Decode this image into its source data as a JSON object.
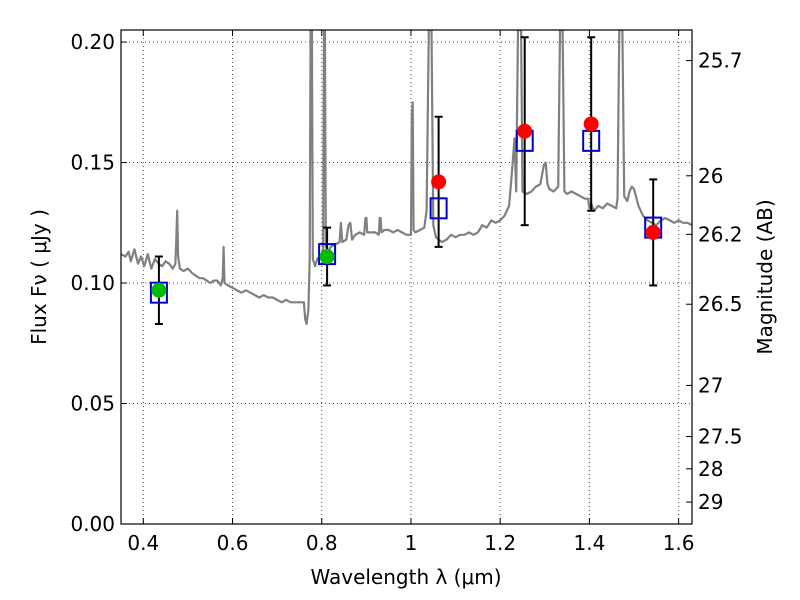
{
  "chart_data": {
    "type": "scatter",
    "xlabel": "Wavelength  λ (μm)",
    "ylabel": "Flux  Fν  ( μJy )",
    "y2label": "Magnitude (AB)",
    "xlim": [
      0.35,
      1.63
    ],
    "ylim": [
      0.0,
      0.205
    ],
    "grid": true,
    "x_ticks": [
      0.4,
      0.6,
      0.8,
      1.0,
      1.2,
      1.4,
      1.6
    ],
    "x_tick_labels": [
      "0.4",
      "0.6",
      "0.8",
      "1",
      "1.2",
      "1.4",
      "1.6"
    ],
    "y_ticks": [
      0.0,
      0.05,
      0.1,
      0.15,
      0.2
    ],
    "y_tick_labels": [
      "0.00",
      "0.05",
      "0.10",
      "0.15",
      "0.20"
    ],
    "y2_ticks": [
      {
        "label": "25.7",
        "flux": 0.1923
      },
      {
        "label": "26",
        "flux": 0.1445
      },
      {
        "label": "26.2",
        "flux": 0.1202
      },
      {
        "label": "26.5",
        "flux": 0.0912
      },
      {
        "label": "27",
        "flux": 0.0575
      },
      {
        "label": "27.5",
        "flux": 0.0363
      },
      {
        "label": "28",
        "flux": 0.0229
      },
      {
        "label": "29",
        "flux": 0.0091
      }
    ],
    "colors": {
      "spectrum": "#808080",
      "model_box": "#0000cc",
      "observed_red": "#ff0000",
      "observed_green": "#00bb00",
      "errorbar": "#000000"
    },
    "spectrum": [
      [
        0.35,
        0.112
      ],
      [
        0.36,
        0.111
      ],
      [
        0.367,
        0.113
      ],
      [
        0.372,
        0.109
      ],
      [
        0.38,
        0.114
      ],
      [
        0.388,
        0.108
      ],
      [
        0.395,
        0.111
      ],
      [
        0.402,
        0.107
      ],
      [
        0.41,
        0.112
      ],
      [
        0.418,
        0.106
      ],
      [
        0.426,
        0.11
      ],
      [
        0.434,
        0.108
      ],
      [
        0.442,
        0.107
      ],
      [
        0.45,
        0.109
      ],
      [
        0.458,
        0.108
      ],
      [
        0.466,
        0.106
      ],
      [
        0.472,
        0.108
      ],
      [
        0.474,
        0.118
      ],
      [
        0.476,
        0.13
      ],
      [
        0.478,
        0.111
      ],
      [
        0.482,
        0.106
      ],
      [
        0.49,
        0.105
      ],
      [
        0.5,
        0.106
      ],
      [
        0.51,
        0.104
      ],
      [
        0.518,
        0.103
      ],
      [
        0.526,
        0.102
      ],
      [
        0.534,
        0.102
      ],
      [
        0.542,
        0.101
      ],
      [
        0.55,
        0.1
      ],
      [
        0.558,
        0.101
      ],
      [
        0.566,
        0.101
      ],
      [
        0.574,
        0.099
      ],
      [
        0.578,
        0.102
      ],
      [
        0.58,
        0.115
      ],
      [
        0.582,
        0.1
      ],
      [
        0.59,
        0.099
      ],
      [
        0.6,
        0.098
      ],
      [
        0.61,
        0.097
      ],
      [
        0.62,
        0.096
      ],
      [
        0.63,
        0.097
      ],
      [
        0.64,
        0.096
      ],
      [
        0.65,
        0.095
      ],
      [
        0.66,
        0.094
      ],
      [
        0.67,
        0.095
      ],
      [
        0.68,
        0.094
      ],
      [
        0.69,
        0.094
      ],
      [
        0.7,
        0.093
      ],
      [
        0.71,
        0.092
      ],
      [
        0.72,
        0.093
      ],
      [
        0.73,
        0.092
      ],
      [
        0.74,
        0.092
      ],
      [
        0.75,
        0.092
      ],
      [
        0.76,
        0.092
      ],
      [
        0.763,
        0.085
      ],
      [
        0.766,
        0.083
      ],
      [
        0.77,
        0.089
      ],
      [
        0.773,
        0.11
      ],
      [
        0.775,
        0.205
      ],
      [
        0.778,
        0.205
      ],
      [
        0.78,
        0.11
      ],
      [
        0.785,
        0.107
      ],
      [
        0.79,
        0.11
      ],
      [
        0.795,
        0.111
      ],
      [
        0.8,
        0.112
      ],
      [
        0.803,
        0.114
      ],
      [
        0.805,
        0.205
      ],
      [
        0.807,
        0.205
      ],
      [
        0.809,
        0.115
      ],
      [
        0.815,
        0.113
      ],
      [
        0.82,
        0.115
      ],
      [
        0.83,
        0.116
      ],
      [
        0.84,
        0.117
      ],
      [
        0.843,
        0.125
      ],
      [
        0.846,
        0.117
      ],
      [
        0.855,
        0.118
      ],
      [
        0.86,
        0.124
      ],
      [
        0.864,
        0.125
      ],
      [
        0.868,
        0.118
      ],
      [
        0.875,
        0.12
      ],
      [
        0.885,
        0.121
      ],
      [
        0.895,
        0.12
      ],
      [
        0.898,
        0.127
      ],
      [
        0.9,
        0.127
      ],
      [
        0.902,
        0.121
      ],
      [
        0.91,
        0.121
      ],
      [
        0.92,
        0.121
      ],
      [
        0.928,
        0.12
      ],
      [
        0.93,
        0.127
      ],
      [
        0.932,
        0.127
      ],
      [
        0.934,
        0.121
      ],
      [
        0.94,
        0.122
      ],
      [
        0.95,
        0.122
      ],
      [
        0.96,
        0.121
      ],
      [
        0.97,
        0.122
      ],
      [
        0.98,
        0.121
      ],
      [
        0.99,
        0.12
      ],
      [
        1.0,
        0.12
      ],
      [
        1.002,
        0.17
      ],
      [
        1.004,
        0.175
      ],
      [
        1.006,
        0.122
      ],
      [
        1.01,
        0.121
      ],
      [
        1.02,
        0.122
      ],
      [
        1.03,
        0.123
      ],
      [
        1.035,
        0.13
      ],
      [
        1.04,
        0.205
      ],
      [
        1.046,
        0.205
      ],
      [
        1.05,
        0.124
      ],
      [
        1.056,
        0.119
      ],
      [
        1.062,
        0.118
      ],
      [
        1.07,
        0.117
      ],
      [
        1.08,
        0.118
      ],
      [
        1.09,
        0.12
      ],
      [
        1.1,
        0.119
      ],
      [
        1.11,
        0.12
      ],
      [
        1.12,
        0.12
      ],
      [
        1.13,
        0.121
      ],
      [
        1.14,
        0.12
      ],
      [
        1.15,
        0.121
      ],
      [
        1.16,
        0.124
      ],
      [
        1.17,
        0.123
      ],
      [
        1.18,
        0.126
      ],
      [
        1.19,
        0.125
      ],
      [
        1.2,
        0.126
      ],
      [
        1.21,
        0.128
      ],
      [
        1.22,
        0.132
      ],
      [
        1.228,
        0.15
      ],
      [
        1.232,
        0.16
      ],
      [
        1.236,
        0.138
      ],
      [
        1.24,
        0.205
      ],
      [
        1.247,
        0.205
      ],
      [
        1.25,
        0.138
      ],
      [
        1.26,
        0.137
      ],
      [
        1.27,
        0.138
      ],
      [
        1.28,
        0.14
      ],
      [
        1.29,
        0.141
      ],
      [
        1.298,
        0.149
      ],
      [
        1.302,
        0.15
      ],
      [
        1.306,
        0.141
      ],
      [
        1.31,
        0.139
      ],
      [
        1.32,
        0.138
      ],
      [
        1.33,
        0.14
      ],
      [
        1.334,
        0.205
      ],
      [
        1.34,
        0.205
      ],
      [
        1.344,
        0.138
      ],
      [
        1.35,
        0.137
      ],
      [
        1.36,
        0.138
      ],
      [
        1.37,
        0.137
      ],
      [
        1.38,
        0.136
      ],
      [
        1.39,
        0.135
      ],
      [
        1.397,
        0.135
      ],
      [
        1.4,
        0.131
      ],
      [
        1.404,
        0.133
      ],
      [
        1.41,
        0.13
      ],
      [
        1.42,
        0.132
      ],
      [
        1.43,
        0.131
      ],
      [
        1.44,
        0.133
      ],
      [
        1.45,
        0.132
      ],
      [
        1.46,
        0.131
      ],
      [
        1.463,
        0.135
      ],
      [
        1.467,
        0.205
      ],
      [
        1.474,
        0.205
      ],
      [
        1.478,
        0.136
      ],
      [
        1.485,
        0.134
      ],
      [
        1.49,
        0.138
      ],
      [
        1.495,
        0.14
      ],
      [
        1.5,
        0.139
      ],
      [
        1.51,
        0.132
      ],
      [
        1.52,
        0.128
      ],
      [
        1.53,
        0.126
      ],
      [
        1.54,
        0.125
      ],
      [
        1.55,
        0.124
      ],
      [
        1.56,
        0.126
      ],
      [
        1.57,
        0.127
      ],
      [
        1.58,
        0.126
      ],
      [
        1.59,
        0.125
      ],
      [
        1.6,
        0.126
      ],
      [
        1.61,
        0.125
      ],
      [
        1.62,
        0.125
      ],
      [
        1.63,
        0.124
      ]
    ],
    "series": [
      {
        "type": "boxes",
        "marker": "square",
        "x": [
          0.435,
          0.812,
          1.062,
          1.255,
          1.404,
          1.543
        ],
        "y": [
          0.096,
          0.112,
          0.131,
          0.159,
          0.159,
          0.123
        ]
      },
      {
        "type": "points",
        "marker": "circle",
        "color": "green",
        "x": [
          0.435,
          0.812
        ],
        "y": [
          0.097,
          0.111
        ],
        "err": [
          0.014,
          0.012
        ]
      },
      {
        "type": "points",
        "marker": "circle",
        "color": "red",
        "x": [
          1.062,
          1.255,
          1.404,
          1.543
        ],
        "y": [
          0.142,
          0.163,
          0.166,
          0.121
        ],
        "err": [
          0.027,
          0.039,
          0.036,
          0.022
        ]
      }
    ]
  }
}
